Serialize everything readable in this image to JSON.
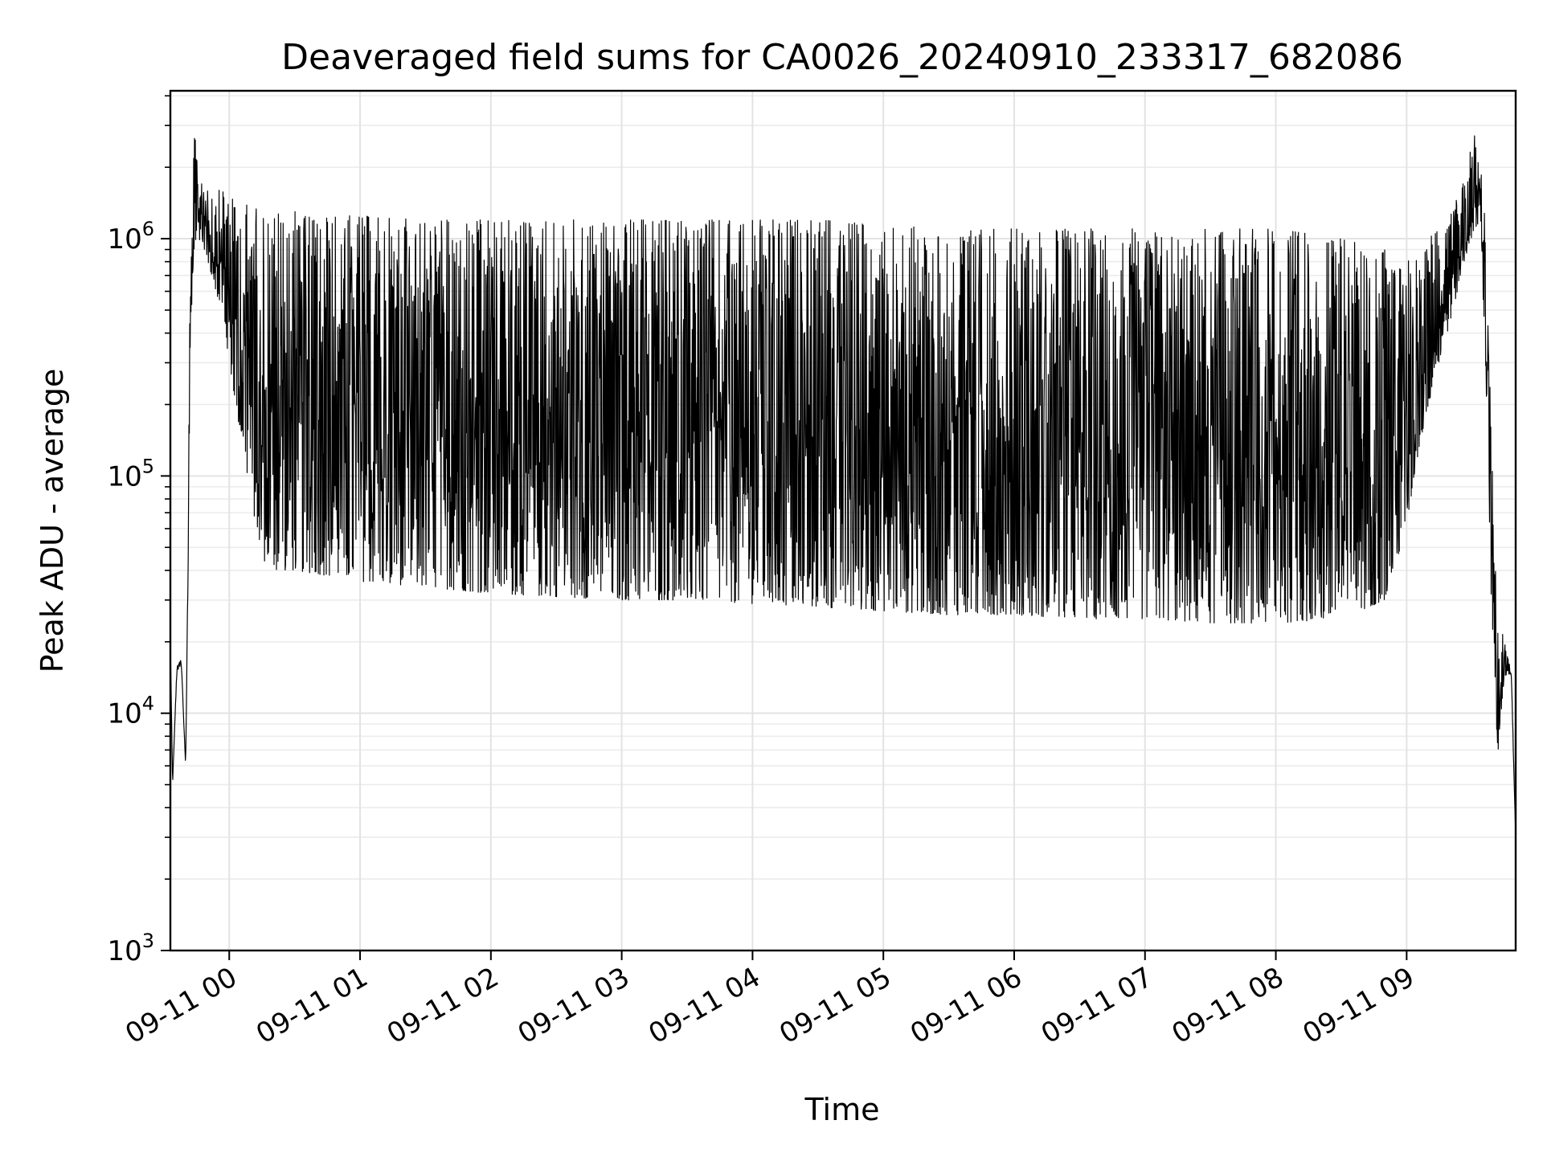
{
  "chart_data": {
    "type": "line",
    "title": "Deaveraged field sums for CA0026_20240910_233317_682086",
    "xlabel": "Time",
    "ylabel": "Peak ADU - average",
    "yscale": "log",
    "ylim": [
      1000,
      4200000
    ],
    "xlim": [
      "2024-09-10 23:33",
      "2024-09-11 09:50"
    ],
    "x_ticks": [
      "09-11 00",
      "09-11 01",
      "09-11 02",
      "09-11 03",
      "09-11 04",
      "09-11 05",
      "09-11 06",
      "09-11 07",
      "09-11 08",
      "09-11 09"
    ],
    "y_ticks": [
      {
        "value": 1000,
        "base": "10",
        "exp": "3"
      },
      {
        "value": 10000,
        "base": "10",
        "exp": "4"
      },
      {
        "value": 100000,
        "base": "10",
        "exp": "5"
      },
      {
        "value": 1000000,
        "base": "10",
        "exp": "6"
      }
    ],
    "grid": true,
    "line_color": "#000000",
    "series": [
      {
        "x": [
          "2024-09-10 23:33",
          "2024-09-10 23:34",
          "2024-09-10 23:36",
          "2024-09-10 23:38",
          "2024-09-10 23:40",
          "2024-09-10 23:41",
          "2024-09-10 23:42",
          "2024-09-10 23:43",
          "2024-09-10 23:44",
          "2024-09-10 23:46",
          "2024-09-10 23:48",
          "2024-09-10 23:50",
          "2024-09-10 23:52",
          "2024-09-10 23:54",
          "2024-09-10 23:56",
          "2024-09-10 23:58",
          "2024-09-11 00:00",
          "2024-09-11 00:05",
          "2024-09-11 00:10",
          "2024-09-11 00:15",
          "2024-09-11 00:20",
          "2024-09-11 00:30",
          "2024-09-11 00:45",
          "2024-09-11 01:00",
          "2024-09-11 01:30",
          "2024-09-11 02:00",
          "2024-09-11 02:30",
          "2024-09-11 03:00",
          "2024-09-11 03:30",
          "2024-09-11 04:00",
          "2024-09-11 04:30",
          "2024-09-11 05:00",
          "2024-09-11 05:30",
          "2024-09-11 06:00",
          "2024-09-11 06:30",
          "2024-09-11 07:00",
          "2024-09-11 07:30",
          "2024-09-11 08:00",
          "2024-09-11 08:30",
          "2024-09-11 08:50",
          "2024-09-11 09:00",
          "2024-09-11 09:05",
          "2024-09-11 09:10",
          "2024-09-11 09:15",
          "2024-09-11 09:20",
          "2024-09-11 09:25",
          "2024-09-11 09:28",
          "2024-09-11 09:31",
          "2024-09-11 09:34",
          "2024-09-11 09:36",
          "2024-09-11 09:38",
          "2024-09-11 09:40",
          "2024-09-11 09:42",
          "2024-09-11 09:44",
          "2024-09-11 09:46",
          "2024-09-11 09:48",
          "2024-09-11 09:50"
        ],
        "y_low": [
          20000,
          5000,
          15000,
          16000,
          6000,
          30000,
          200000,
          600000,
          900000,
          1000000,
          950000,
          800000,
          700000,
          600000,
          500000,
          400000,
          300000,
          150000,
          80000,
          45000,
          40000,
          40000,
          38000,
          36000,
          34000,
          32000,
          31000,
          30000,
          30000,
          29000,
          28000,
          27000,
          26000,
          26000,
          25000,
          25000,
          24000,
          24000,
          25000,
          30000,
          60000,
          120000,
          200000,
          300000,
          450000,
          700000,
          900000,
          1100000,
          1200000,
          300000,
          60000,
          10000,
          7000,
          12000,
          15000,
          14000,
          3000
        ],
        "y_high": [
          20000,
          5000,
          16000,
          17000,
          6000,
          40000,
          600000,
          1200000,
          2800000,
          2000000,
          1800000,
          1600000,
          1600000,
          1600000,
          1600000,
          1700000,
          1500000,
          1400000,
          1400000,
          1300000,
          1300000,
          1300000,
          1250000,
          1250000,
          1200000,
          1200000,
          1200000,
          1200000,
          1200000,
          1200000,
          1200000,
          1150000,
          1100000,
          1100000,
          1100000,
          1100000,
          1100000,
          1100000,
          1000000,
          900000,
          800000,
          900000,
          1000000,
          1100000,
          1300000,
          1600000,
          2000000,
          3000000,
          2000000,
          1200000,
          300000,
          60000,
          20000,
          22000,
          18000,
          15000,
          3000
        ]
      }
    ]
  }
}
